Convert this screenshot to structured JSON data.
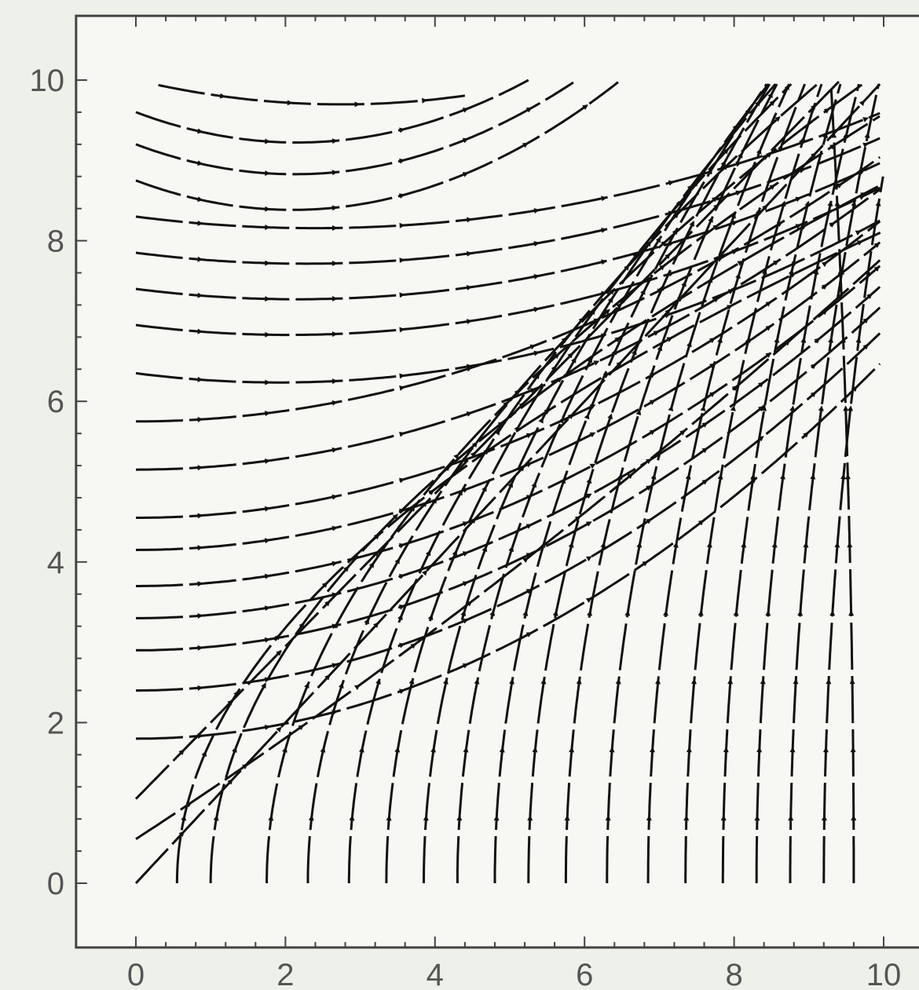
{
  "chart_data": {
    "type": "stream",
    "title": "",
    "xlabel": "",
    "ylabel": "",
    "xlim": [
      -0.8,
      10.9
    ],
    "ylim": [
      -0.8,
      10.8
    ],
    "x_ticks": [
      "0",
      "2",
      "4",
      "6",
      "8",
      "10"
    ],
    "y_ticks": [
      "0",
      "2",
      "4",
      "6",
      "8",
      "10"
    ],
    "x_tick_values": [
      0,
      2,
      4,
      6,
      8,
      10
    ],
    "y_tick_values": [
      0,
      2,
      4,
      6,
      8,
      10
    ],
    "grid": false,
    "legend": "none",
    "plot_region": {
      "x": [
        0,
        10
      ],
      "y": [
        0,
        10
      ]
    },
    "vector_field": {
      "dx": "1",
      "dy": "y/x"
    },
    "streamlines_from_left_edge": [
      1.8,
      2.4,
      2.9,
      3.3,
      3.7,
      4.15,
      4.55,
      5.15,
      5.75,
      6.35,
      6.95,
      7.4,
      7.85,
      8.3,
      8.75,
      9.2,
      9.6
    ],
    "streamlines_through_origin_slopes": [
      0.55,
      1.0
    ],
    "streamlines_from_bottom_edge": [
      0.0,
      0.55,
      1.0,
      1.75,
      2.3,
      2.85,
      3.35,
      3.85,
      4.3,
      4.8,
      5.25,
      5.75,
      6.3,
      6.85,
      7.35,
      7.85,
      8.3,
      8.75,
      9.2,
      9.6
    ],
    "streamlines_upper": [
      0.3,
      3.5
    ],
    "colors": {
      "stroke": "#111111",
      "frame": "#444444",
      "background": "#f7f8f3"
    }
  }
}
